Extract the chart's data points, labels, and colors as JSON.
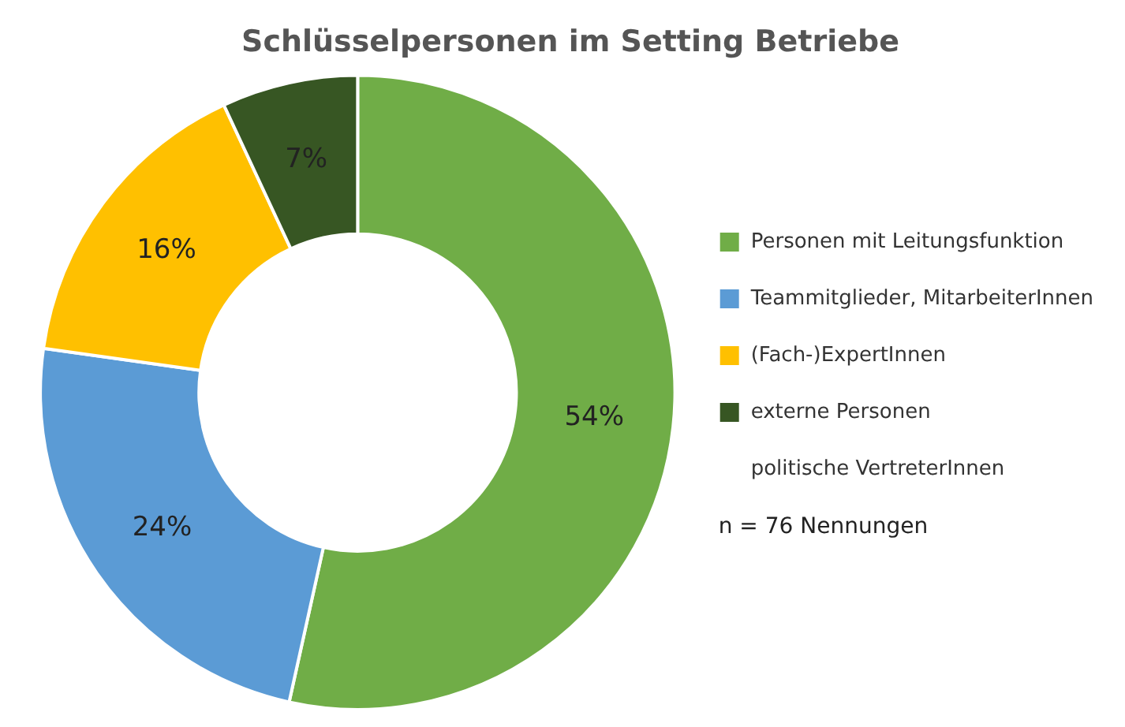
{
  "chart_data": {
    "type": "donut",
    "title": "Schlüsselpersonen im Setting Betriebe",
    "categories": [
      "Personen mit Leitungsfunktion",
      "Teammitglieder, MitarbeiterInnen",
      "(Fach-)ExpertInnen",
      "externe Personen",
      "politische VertreterInnen"
    ],
    "values": [
      54,
      24,
      16,
      7,
      0
    ],
    "colors": [
      "#70ad47",
      "#5b9bd5",
      "#ffc000",
      "#375623",
      "#ffffff"
    ],
    "value_labels": [
      "54%",
      "24%",
      "16%",
      "7%",
      null
    ],
    "legend": "right",
    "annotations": [
      "n = 76 Nennungen"
    ]
  }
}
